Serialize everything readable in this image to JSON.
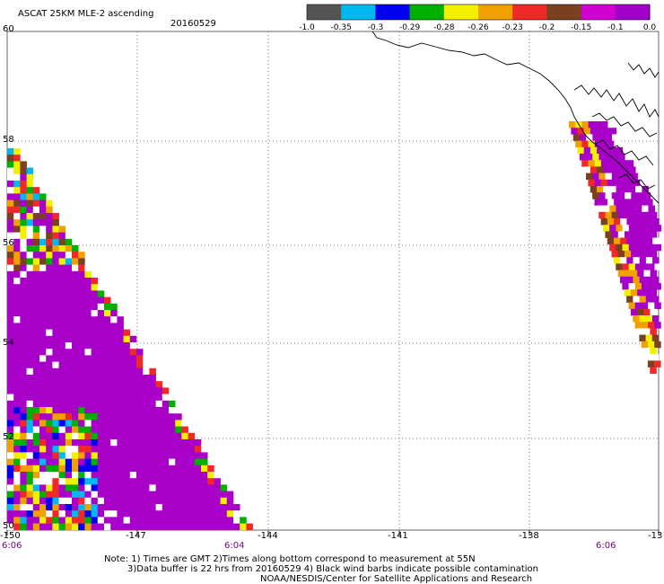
{
  "header": {
    "title": "ASCAT 25KM MLE-2 ascending",
    "date": "20160529"
  },
  "colorbar": {
    "colors": [
      "#555555",
      "#00b8f0",
      "#0000f0",
      "#00b000",
      "#f0f000",
      "#f0a000",
      "#f02828",
      "#7a4020",
      "#d000d0",
      "#a000c8"
    ],
    "labels": [
      "-1.0",
      "-0.35",
      "-0.3",
      "-0.29",
      "-0.28",
      "-0.26",
      "-0.23",
      "-0.2",
      "-0.15",
      "-0.1",
      "0.0"
    ]
  },
  "map": {
    "lon_ticks": [
      "-150",
      "-147",
      "-144",
      "-141",
      "-138",
      "-13"
    ],
    "lat_ticks": [
      "60",
      "58",
      "56",
      "54",
      "52",
      "50"
    ],
    "times": [
      "6:06",
      "6:04",
      "6:06"
    ],
    "swath_color": "#a800c8",
    "coast_color": "#000000",
    "grid_color": "#555555"
  },
  "footer": {
    "line1": "Note: 1) Times are GMT 2)Times along bottom correspond to measurement at 55N",
    "line2": "3)Data buffer is 22 hrs from 20160529 4) Black wind barbs indicate possible contamination",
    "line3": "NOAA/NESDIS/Center for Satellite Applications and Research"
  }
}
